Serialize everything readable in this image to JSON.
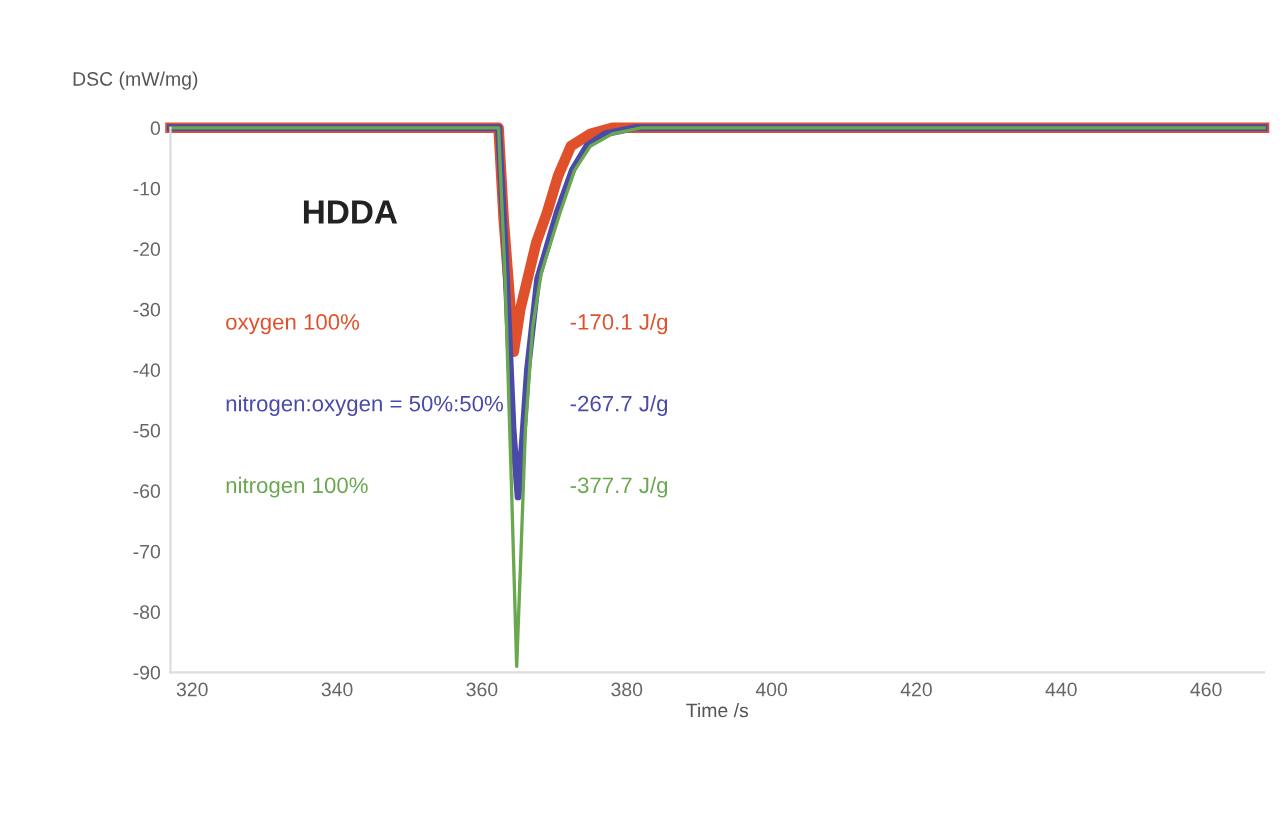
{
  "chart_data": {
    "type": "line",
    "xlabel": "Time /s",
    "ylabel": "DSC (mW/mg)",
    "xlim": [
      317,
      468
    ],
    "ylim": [
      -90,
      0
    ],
    "xticks": [
      320,
      340,
      360,
      380,
      400,
      420,
      440,
      460
    ],
    "yticks": [
      0,
      -10,
      -20,
      -30,
      -40,
      -50,
      -60,
      -70,
      -80,
      -90
    ],
    "grid": false,
    "legend": false,
    "marker": "none",
    "line_style": "solid",
    "annotations": [
      "HDDA",
      "-170.1 J/g",
      "-267.7 J/g",
      "-377.7 J/g"
    ],
    "series": [
      {
        "name": "oxygen 100%",
        "color": "#e0502a",
        "x": [
          317,
          362.3,
          363.0,
          364.4,
          365.3,
          366.3,
          367.5,
          369,
          370.5,
          372.3,
          375,
          378,
          468
        ],
        "values": [
          0,
          0,
          -15,
          -37,
          -30,
          -25,
          -19,
          -14,
          -8,
          -3,
          -1,
          0,
          0
        ]
      },
      {
        "name": "nitrogen:oxygen = 50%:50%",
        "color": "#4a4aa8",
        "x": [
          317,
          362.3,
          363.2,
          364.3,
          365.0,
          365.6,
          366.3,
          367.7,
          370.4,
          372.5,
          374.5,
          377,
          381,
          468
        ],
        "values": [
          0,
          0,
          -20,
          -50,
          -61,
          -52,
          -40,
          -25,
          -14,
          -7,
          -3,
          -1,
          0,
          0
        ]
      },
      {
        "name": "nitrogen 100%",
        "color": "#6aa84f",
        "x": [
          317,
          362.3,
          363.2,
          364.1,
          364.8,
          365.4,
          366.0,
          367,
          368.2,
          370.8,
          372.8,
          375,
          378,
          382,
          468
        ],
        "values": [
          0,
          0,
          -25,
          -60,
          -89,
          -70,
          -50,
          -33,
          -24,
          -14,
          -7,
          -3,
          -1,
          0,
          0
        ]
      }
    ]
  }
}
